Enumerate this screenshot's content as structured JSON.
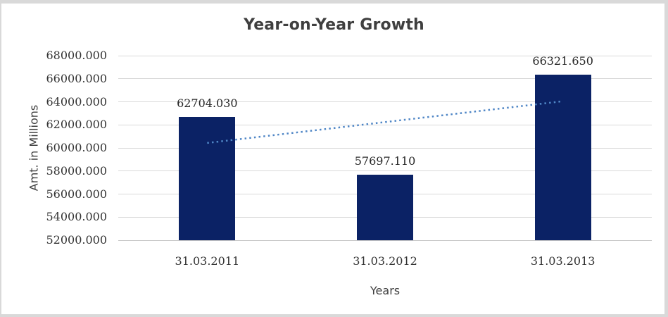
{
  "frame": {
    "border_color": "#D9D9D9",
    "background": "#FFFFFF"
  },
  "chart_data": {
    "type": "bar",
    "title": "Year-on-Year Growth",
    "xlabel": "Years",
    "ylabel": "Amt. in Millions",
    "categories": [
      "31.03.2011",
      "31.03.2012",
      "31.03.2013"
    ],
    "values": [
      62704.03,
      57697.11,
      66321.65
    ],
    "data_labels": [
      "62704.030",
      "57697.110",
      "66321.650"
    ],
    "ylim": [
      52000,
      68000
    ],
    "ytick_step": 2000,
    "ytick_labels": [
      "68000.000",
      "66000.000",
      "64000.000",
      "62000.000",
      "60000.000",
      "58000.000",
      "56000.000",
      "54000.000",
      "52000.000"
    ],
    "grid": true,
    "legend": "none",
    "bar_color": "#0B2265",
    "gridline_color": "#D9D9D9",
    "text_color": "#3F3F3F",
    "tick_text_color": "#333333",
    "trendline": {
      "type": "linear",
      "style": "dotted",
      "color": "#4F86C6",
      "start_value": 60432.1,
      "end_value": 64049.7
    }
  }
}
